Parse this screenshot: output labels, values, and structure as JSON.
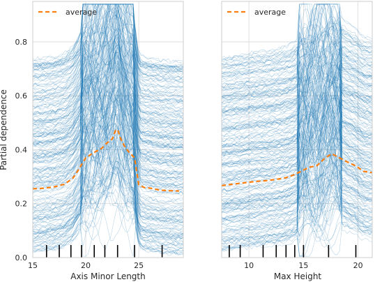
{
  "chart_data": [
    {
      "type": "line",
      "subtype": "partial-dependence-ice",
      "xlabel": "Axis Minor Length",
      "ylabel": "Partial dependence",
      "xlim": [
        15,
        29.2
      ],
      "ylim": [
        0,
        0.95
      ],
      "xticks": [
        15,
        20,
        25
      ],
      "yticks": [
        0.0,
        0.2,
        0.4,
        0.6,
        0.8
      ],
      "grid": true,
      "legend_position": "top-left",
      "series": [
        {
          "name": "average",
          "style": "dashed",
          "color": "#ff7f0e",
          "x": [
            15.0,
            16.0,
            17.0,
            18.0,
            18.8,
            19.3,
            20.0,
            20.8,
            21.5,
            22.0,
            22.5,
            22.8,
            23.0,
            23.3,
            23.7,
            24.1,
            24.6,
            25.0,
            25.5,
            26.0,
            27.0,
            28.0,
            28.8
          ],
          "y": [
            0.255,
            0.257,
            0.262,
            0.272,
            0.295,
            0.325,
            0.37,
            0.39,
            0.405,
            0.425,
            0.44,
            0.47,
            0.475,
            0.44,
            0.41,
            0.39,
            0.37,
            0.27,
            0.26,
            0.258,
            0.25,
            0.248,
            0.247
          ]
        }
      ],
      "ice_lines": {
        "count": 230,
        "color": "#1f77b4",
        "opacity": 0.3
      },
      "rug_ticks": [
        16.3,
        17.5,
        18.6,
        19.6,
        20.8,
        21.8,
        23.0,
        24.6,
        27.2
      ]
    },
    {
      "type": "line",
      "subtype": "partial-dependence-ice",
      "xlabel": "Max Height",
      "ylabel": "",
      "xlim": [
        7.5,
        21.3
      ],
      "ylim": [
        0,
        0.95
      ],
      "xticks": [
        10,
        15,
        20
      ],
      "yticks": [
        0.0,
        0.2,
        0.4,
        0.6,
        0.8
      ],
      "grid": true,
      "legend_position": "top-left",
      "series": [
        {
          "name": "average",
          "style": "dashed",
          "color": "#ff7f0e",
          "x": [
            7.5,
            8.5,
            9.5,
            10.5,
            11.5,
            12.5,
            13.3,
            14.0,
            14.8,
            15.5,
            16.2,
            17.0,
            17.6,
            18.3,
            19.0,
            19.8,
            20.5,
            21.3
          ],
          "y": [
            0.267,
            0.272,
            0.277,
            0.282,
            0.285,
            0.29,
            0.295,
            0.305,
            0.32,
            0.335,
            0.34,
            0.37,
            0.385,
            0.37,
            0.355,
            0.34,
            0.32,
            0.315
          ]
        }
      ],
      "ice_lines": {
        "count": 230,
        "color": "#1f77b4",
        "opacity": 0.3
      },
      "rug_ticks": [
        8.2,
        9.2,
        11.3,
        12.5,
        13.4,
        14.2,
        15.0,
        17.3,
        19.8
      ]
    }
  ]
}
